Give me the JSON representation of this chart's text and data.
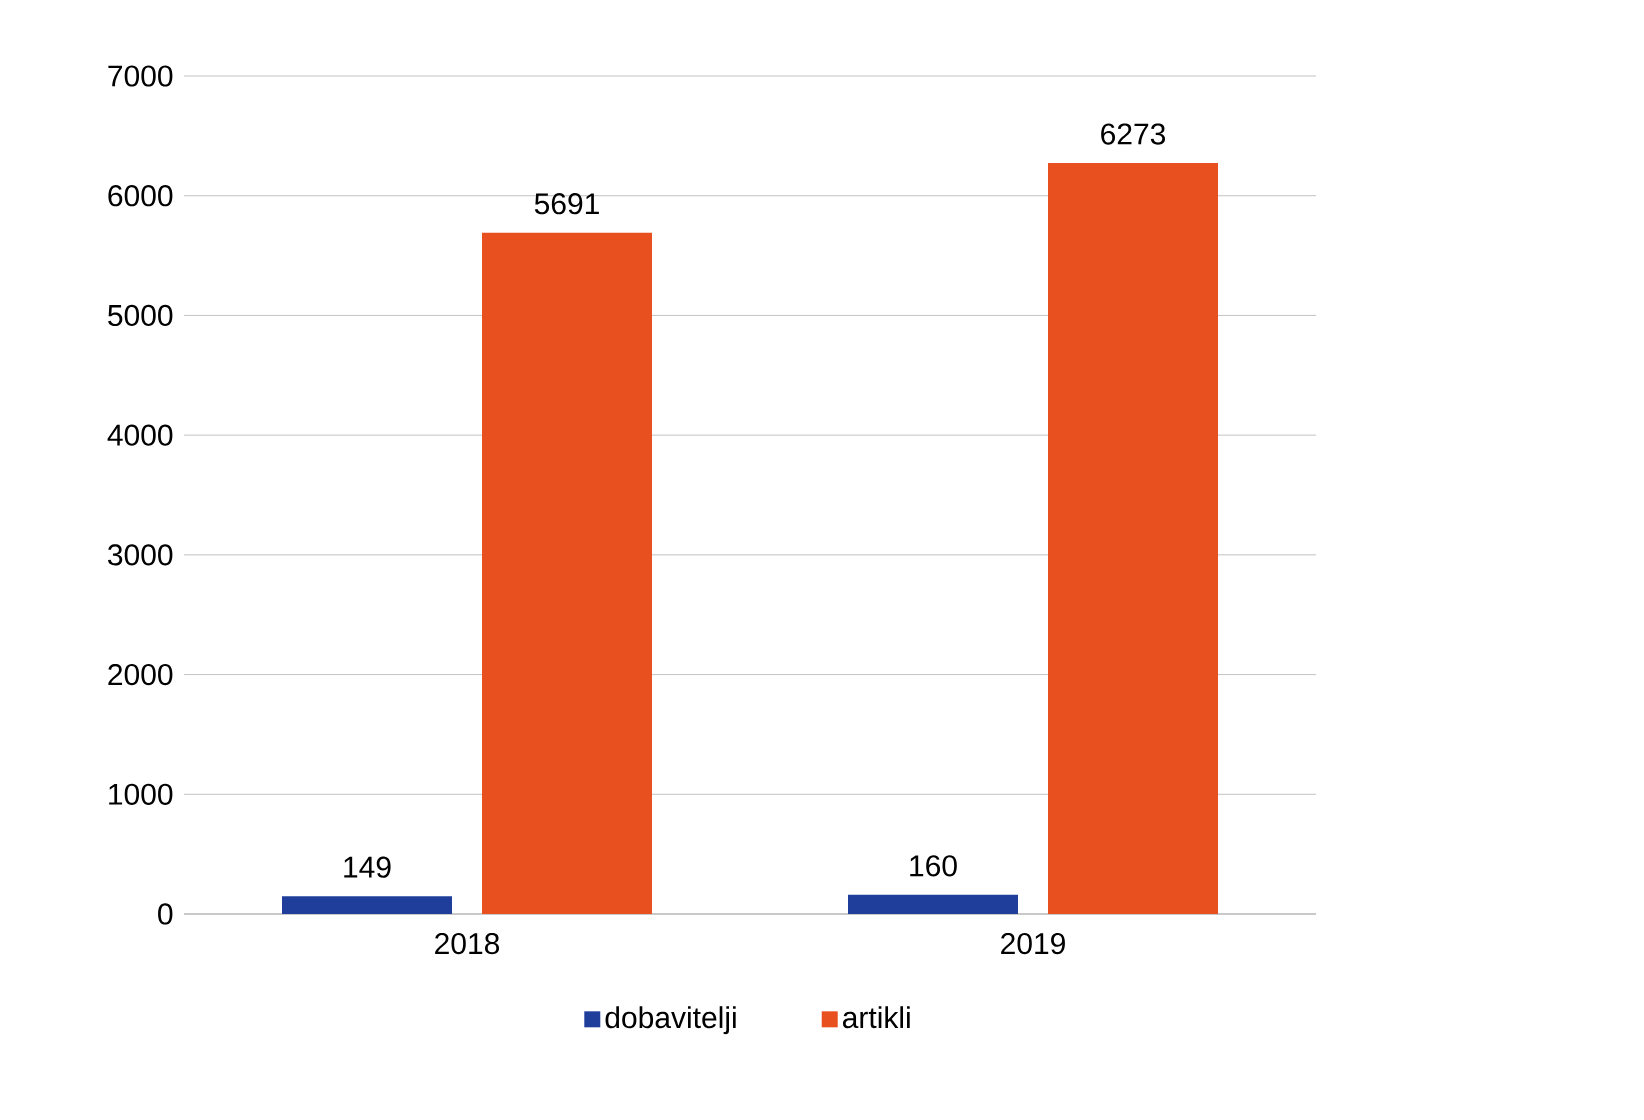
{
  "chart_data": {
    "type": "bar",
    "categories": [
      "2018",
      "2019"
    ],
    "series": [
      {
        "name": "dobavitelji",
        "color": "#1f3e9c",
        "values": [
          149,
          160
        ]
      },
      {
        "name": "artikli",
        "color": "#e8501f",
        "values": [
          5691,
          6273
        ]
      }
    ],
    "ylim": [
      0,
      7000
    ],
    "yticks": [
      0,
      1000,
      2000,
      3000,
      4000,
      5000,
      6000,
      7000
    ],
    "grid": "y",
    "legend": "bottom",
    "data_labels": true
  }
}
